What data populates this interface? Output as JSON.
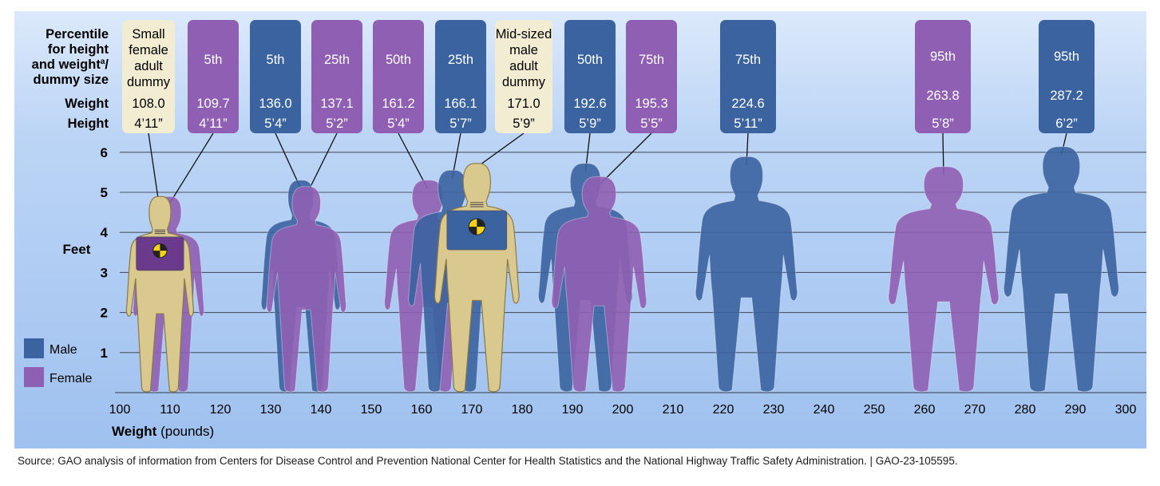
{
  "chart_data": {
    "type": "scatter",
    "row_labels": {
      "percentile": [
        "Percentile",
        "for height",
        "and weight",
        "a",
        "/",
        "dummy size"
      ],
      "weight": "Weight",
      "height": "Height"
    },
    "ylabel": "Feet",
    "xlabel_bold": "Weight",
    "xlabel_unit": "(pounds)",
    "xlim": [
      100,
      300
    ],
    "ylim": [
      0,
      6
    ],
    "xticks": [
      "100",
      "110",
      "120",
      "130",
      "140",
      "150",
      "160",
      "170",
      "180",
      "190",
      "200",
      "210",
      "220",
      "230",
      "240",
      "250",
      "260",
      "270",
      "280",
      "290",
      "300"
    ],
    "yticks": [
      "1",
      "2",
      "3",
      "4",
      "5",
      "6"
    ],
    "legend": [
      {
        "label": "Male",
        "color": "#3b63a0"
      },
      {
        "label": "Female",
        "color": "#8f5fb3"
      }
    ],
    "colors": {
      "background": "#a8c8f2",
      "male": "#3b63a0",
      "female": "#8f5fb3",
      "dummy_box": "#f2ecd2",
      "dummy_body": "#d9c98f"
    },
    "points": [
      {
        "label_lines": [
          "Small",
          "female",
          "adult",
          "dummy"
        ],
        "kind": "dummy",
        "weight": 108.0,
        "weight_label": "108.0",
        "height_label": "4’11”",
        "height_ft": 4.92
      },
      {
        "label_lines": [
          "5th"
        ],
        "kind": "female",
        "weight": 109.7,
        "weight_label": "109.7",
        "height_label": "4’11”",
        "height_ft": 4.92
      },
      {
        "label_lines": [
          "5th"
        ],
        "kind": "male",
        "weight": 136.0,
        "weight_label": "136.0",
        "height_label": "5’4”",
        "height_ft": 5.33
      },
      {
        "label_lines": [
          "25th"
        ],
        "kind": "female",
        "weight": 137.1,
        "weight_label": "137.1",
        "height_label": "5’2”",
        "height_ft": 5.17
      },
      {
        "label_lines": [
          "50th"
        ],
        "kind": "female",
        "weight": 161.2,
        "weight_label": "161.2",
        "height_label": "5’4”",
        "height_ft": 5.33
      },
      {
        "label_lines": [
          "25th"
        ],
        "kind": "male",
        "weight": 166.1,
        "weight_label": "166.1",
        "height_label": "5’7”",
        "height_ft": 5.58
      },
      {
        "label_lines": [
          "Mid-sized",
          "male",
          "adult",
          "dummy"
        ],
        "kind": "dummy",
        "weight": 171.0,
        "weight_label": "171.0",
        "height_label": "5’9”",
        "height_ft": 5.75
      },
      {
        "label_lines": [
          "50th"
        ],
        "kind": "male",
        "weight": 192.6,
        "weight_label": "192.6",
        "height_label": "5’9”",
        "height_ft": 5.75
      },
      {
        "label_lines": [
          "75th"
        ],
        "kind": "female",
        "weight": 195.3,
        "weight_label": "195.3",
        "height_label": "5’5”",
        "height_ft": 5.42
      },
      {
        "label_lines": [
          "75th"
        ],
        "kind": "male",
        "weight": 224.6,
        "weight_label": "224.6",
        "height_label": "5’11”",
        "height_ft": 5.92
      },
      {
        "label_lines": [
          "95th"
        ],
        "kind": "female",
        "weight": 263.8,
        "weight_label": "263.8",
        "height_label": "5’8”",
        "height_ft": 5.67
      },
      {
        "label_lines": [
          "95th"
        ],
        "kind": "male",
        "weight": 287.2,
        "weight_label": "287.2",
        "height_label": "6’2”",
        "height_ft": 6.17
      }
    ]
  },
  "source_line": "Source: GAO analysis of information from Centers for Disease Control and Prevention National Center for Health Statistics and the National Highway Traffic Safety Administration.  |  GAO-23-105595."
}
